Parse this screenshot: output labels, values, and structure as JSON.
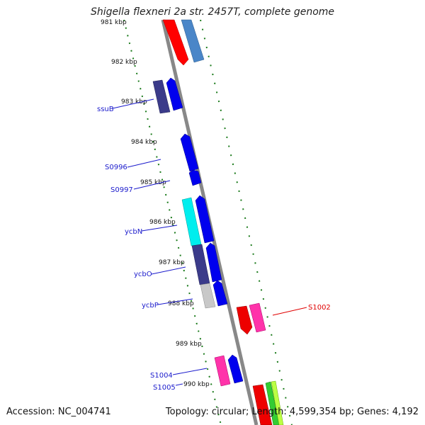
{
  "title": "Shigella flexneri 2a str. 2457T, complete genome",
  "footer": {
    "accession": "Accession: NC_004741",
    "summary": "Topology: circular; Length: 4,599,354 bp; Genes: 4,192"
  },
  "colors": {
    "backbone": "#888888",
    "tick": "#1a7a1a",
    "label_blue": "#1a1acc",
    "label_red": "#e00000"
  },
  "ticks": [
    "981 kbp",
    "982 kbp",
    "983 kbp",
    "984 kbp",
    "985 kbp",
    "986 kbp",
    "987 kbp",
    "988 kbp",
    "989 kbp",
    "990 kbp"
  ],
  "genes": [
    {
      "name": "ssuB",
      "color": "#1a1acc"
    },
    {
      "name": "S0996",
      "color": "#1a1acc"
    },
    {
      "name": "S0997",
      "color": "#1a1acc"
    },
    {
      "name": "ycbN",
      "color": "#1a1acc"
    },
    {
      "name": "ycbO",
      "color": "#1a1acc"
    },
    {
      "name": "ycbP",
      "color": "#1a1acc"
    },
    {
      "name": "S1002",
      "color": "#e00000"
    },
    {
      "name": "S1004",
      "color": "#1a1acc"
    },
    {
      "name": "S1005",
      "color": "#1a1acc"
    }
  ]
}
